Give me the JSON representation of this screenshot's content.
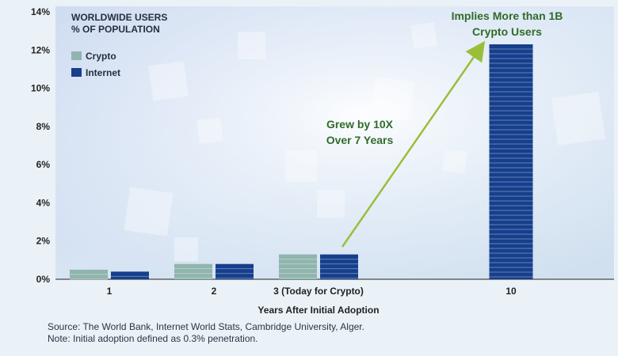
{
  "chart_data": {
    "type": "bar",
    "title": "WORLDWIDE USERS",
    "subtitle": "% OF POPULATION",
    "xlabel": "Years After Initial Adoption",
    "ylabel": "",
    "ylim": [
      0,
      14
    ],
    "yticks": [
      "0%",
      "2%",
      "4%",
      "6%",
      "8%",
      "10%",
      "12%",
      "14%"
    ],
    "categories": [
      "1",
      "2",
      "3 (Today for Crypto)",
      "10"
    ],
    "series": [
      {
        "name": "Crypto",
        "values": [
          0.5,
          0.8,
          1.3,
          null
        ]
      },
      {
        "name": "Internet",
        "values": [
          0.4,
          0.8,
          1.3,
          12.3
        ]
      }
    ],
    "annotations": [
      {
        "text_lines": [
          "Grew by 10X",
          "Over 7 Years"
        ]
      },
      {
        "text_lines": [
          "Implies More than 1B",
          "Crypto Users"
        ]
      }
    ],
    "legend_placement": "top-left",
    "grid": false
  },
  "colors": {
    "crypto": "#8fb5ad",
    "internet": "#163f8c",
    "annotation": "#2f6b2a",
    "arrow": "#9bbe3a",
    "axis": "#222222",
    "background": "#eaf2f8"
  },
  "footer": {
    "source": "Source: The World Bank, Internet World Stats, Cambridge University, Alger.",
    "note": "Note: Initial adoption defined as 0.3% penetration."
  }
}
